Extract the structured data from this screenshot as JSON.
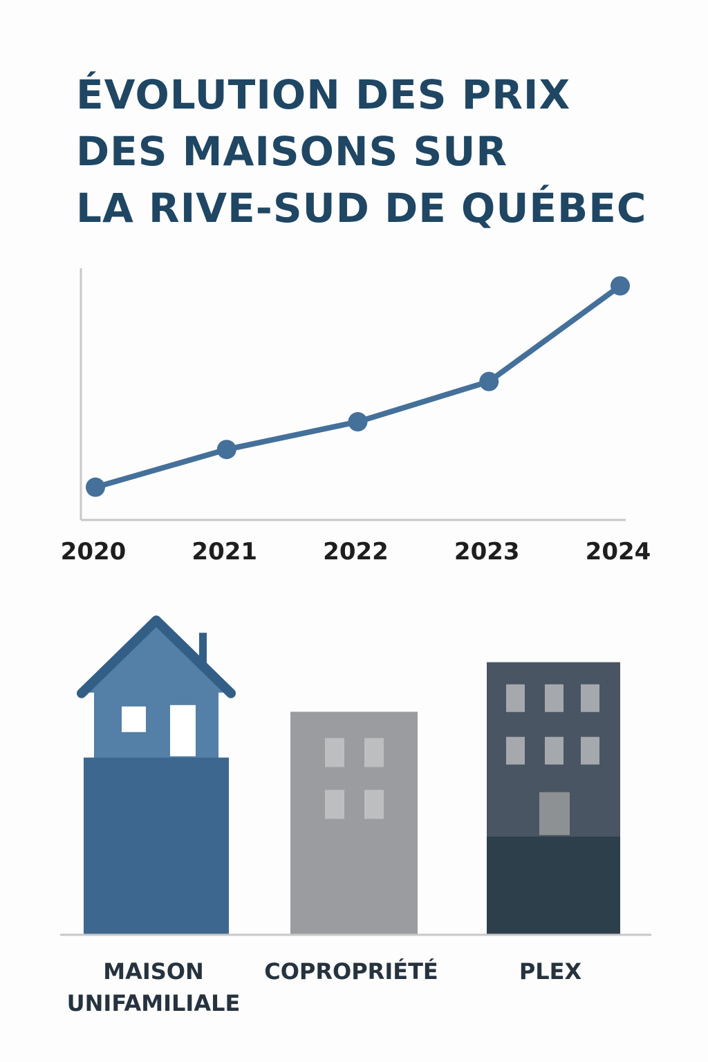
{
  "chart_data": [
    {
      "type": "line",
      "title": "ÉVOLUTION DES PRIX\nDES MAISONS SUR\nLA RIVE-SUD DE QUÉBEC",
      "categories": [
        "2020",
        "2021",
        "2022",
        "2023",
        "2024"
      ],
      "values": [
        13,
        28,
        39,
        55,
        93
      ],
      "color": "#44709a",
      "ylim": [
        0,
        100
      ]
    },
    {
      "type": "bar",
      "categories": [
        "MAISON\nUNIFAMILIALE",
        "COPROPRIÉTÉ",
        "PLEX"
      ],
      "values": [
        90,
        63,
        77
      ],
      "colors": [
        "#547fa6",
        "#9a9ca0",
        "#4a5563"
      ],
      "ylim": [
        0,
        100
      ]
    }
  ]
}
